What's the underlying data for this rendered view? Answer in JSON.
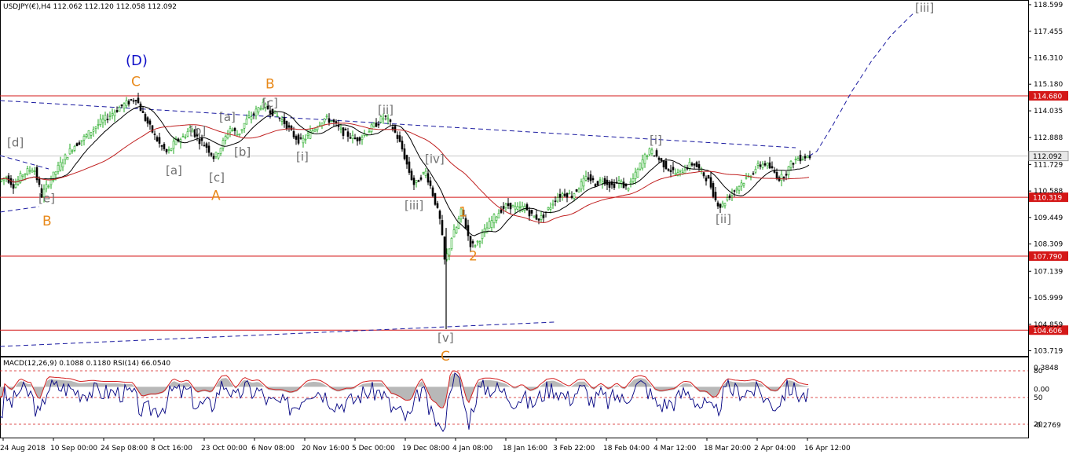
{
  "header": {
    "text": "USDJPY(€),H4  112.062 112.120 112.058 112.092"
  },
  "indicator_header": {
    "text": "MACD(12,26,9) 0.1088 0.1180  RSI(14) 66.0540"
  },
  "colors": {
    "level_line": "#d41818",
    "level_badge": "#d41818",
    "trend_dash": "#1a1aa0",
    "ma_fast": "#000000",
    "ma_slow": "#c02020",
    "candle_up": "#22aa22",
    "candle_down": "#000000",
    "current_price_badge": "#e8e8e8",
    "macd_hist": "#b8b8b8",
    "macd_signal": "#d42020",
    "rsi_line": "#000080"
  },
  "chart_data": {
    "type": "candlestick",
    "symbol": "USDJPY",
    "timeframe": "H4",
    "ylim": [
      103.5,
      118.8
    ],
    "y_ticks": [
      "118.599",
      "117.455",
      "116.310",
      "115.180",
      "114.035",
      "112.888",
      "111.729",
      "110.588",
      "109.449",
      "108.309",
      "107.139",
      "105.999",
      "104.859",
      "103.719"
    ],
    "x_ticks": [
      "24 Aug 2018",
      "10 Sep 00:00",
      "24 Sep 08:00",
      "8 Oct 16:00",
      "23 Oct 00:00",
      "6 Nov 08:00",
      "20 Nov 16:00",
      "5 Dec 00:00",
      "19 Dec 08:00",
      "4 Jan 08:00",
      "18 Jan 16:00",
      "3 Feb 22:00",
      "18 Feb 04:00",
      "4 Mar 12:00",
      "18 Mar 20:00",
      "2 Apr 04:00",
      "16 Apr 12:00"
    ],
    "levels": [
      "114.680",
      "110.319",
      "107.790",
      "104.606"
    ],
    "current_price": "112.092",
    "price_path": [
      [
        0,
        111.0
      ],
      [
        10,
        111.2
      ],
      [
        20,
        110.8
      ],
      [
        30,
        111.3
      ],
      [
        45,
        111.6
      ],
      [
        55,
        110.4
      ],
      [
        65,
        111.0
      ],
      [
        80,
        111.8
      ],
      [
        95,
        112.5
      ],
      [
        110,
        112.9
      ],
      [
        125,
        113.4
      ],
      [
        140,
        113.8
      ],
      [
        155,
        114.2
      ],
      [
        165,
        114.4
      ],
      [
        175,
        114.6
      ],
      [
        185,
        113.8
      ],
      [
        195,
        113.2
      ],
      [
        205,
        112.6
      ],
      [
        215,
        112.2
      ],
      [
        225,
        112.7
      ],
      [
        235,
        112.9
      ],
      [
        245,
        113.3
      ],
      [
        255,
        112.8
      ],
      [
        265,
        112.5
      ],
      [
        275,
        112.0
      ],
      [
        285,
        112.6
      ],
      [
        295,
        113.3
      ],
      [
        305,
        113.0
      ],
      [
        315,
        113.6
      ],
      [
        325,
        113.9
      ],
      [
        335,
        114.3
      ],
      [
        345,
        114.1
      ],
      [
        355,
        113.8
      ],
      [
        365,
        113.5
      ],
      [
        375,
        113.0
      ],
      [
        385,
        112.7
      ],
      [
        395,
        113.0
      ],
      [
        405,
        113.4
      ],
      [
        415,
        113.7
      ],
      [
        425,
        113.6
      ],
      [
        435,
        113.2
      ],
      [
        445,
        113.0
      ],
      [
        455,
        112.8
      ],
      [
        465,
        113.0
      ],
      [
        475,
        113.3
      ],
      [
        485,
        113.6
      ],
      [
        492,
        113.8
      ],
      [
        500,
        113.4
      ],
      [
        508,
        112.9
      ],
      [
        515,
        112.3
      ],
      [
        522,
        111.5
      ],
      [
        530,
        110.8
      ],
      [
        537,
        111.2
      ],
      [
        544,
        111.4
      ],
      [
        550,
        110.8
      ],
      [
        557,
        110.0
      ],
      [
        563,
        109.2
      ],
      [
        568,
        107.6
      ],
      [
        572,
        107.9
      ],
      [
        577,
        108.6
      ],
      [
        583,
        109.0
      ],
      [
        590,
        109.8
      ],
      [
        596,
        108.9
      ],
      [
        602,
        108.2
      ],
      [
        610,
        108.4
      ],
      [
        620,
        108.9
      ],
      [
        630,
        109.4
      ],
      [
        640,
        109.8
      ],
      [
        650,
        110.0
      ],
      [
        660,
        109.8
      ],
      [
        670,
        109.9
      ],
      [
        680,
        109.5
      ],
      [
        690,
        109.4
      ],
      [
        700,
        109.8
      ],
      [
        710,
        110.3
      ],
      [
        720,
        110.5
      ],
      [
        730,
        110.4
      ],
      [
        740,
        110.8
      ],
      [
        750,
        111.2
      ],
      [
        760,
        110.9
      ],
      [
        770,
        111.1
      ],
      [
        780,
        110.8
      ],
      [
        790,
        111.0
      ],
      [
        800,
        110.7
      ],
      [
        810,
        111.2
      ],
      [
        820,
        111.9
      ],
      [
        828,
        112.3
      ],
      [
        835,
        112.2
      ],
      [
        845,
        111.8
      ],
      [
        855,
        111.5
      ],
      [
        865,
        111.3
      ],
      [
        875,
        111.6
      ],
      [
        885,
        111.8
      ],
      [
        895,
        111.4
      ],
      [
        905,
        111.0
      ],
      [
        913,
        110.2
      ],
      [
        920,
        109.9
      ],
      [
        928,
        110.3
      ],
      [
        936,
        110.6
      ],
      [
        945,
        110.9
      ],
      [
        955,
        111.2
      ],
      [
        965,
        111.6
      ],
      [
        975,
        111.8
      ],
      [
        985,
        111.5
      ],
      [
        995,
        111.1
      ],
      [
        1003,
        111.4
      ],
      [
        1010,
        111.8
      ],
      [
        1018,
        112.0
      ],
      [
        1030,
        112.09
      ]
    ],
    "projection_path": [
      [
        1030,
        112.09
      ],
      [
        1040,
        112.3
      ],
      [
        1060,
        113.4
      ],
      [
        1085,
        114.9
      ],
      [
        1110,
        116.2
      ],
      [
        1135,
        117.3
      ],
      [
        1165,
        118.3
      ]
    ],
    "wave_labels": [
      {
        "text": "(D)",
        "style": "blue",
        "x": 160,
        "price": 116.0
      },
      {
        "text": "C",
        "style": "orange",
        "x": 167,
        "price": 115.1
      },
      {
        "text": "[d]",
        "style": "gray",
        "x": 9,
        "price": 112.5
      },
      {
        "text": "[e]",
        "style": "gray",
        "x": 49,
        "price": 110.1
      },
      {
        "text": "B",
        "style": "orange",
        "x": 54,
        "price": 109.1
      },
      {
        "text": "[b]",
        "style": "gray",
        "x": 241,
        "price": 113.0
      },
      {
        "text": "[a]",
        "style": "gray",
        "x": 211,
        "price": 111.3
      },
      {
        "text": "[a]",
        "style": "gray",
        "x": 279,
        "price": 113.6
      },
      {
        "text": "[b]",
        "style": "gray",
        "x": 298,
        "price": 112.1
      },
      {
        "text": "[c]",
        "style": "gray",
        "x": 266,
        "price": 111.0
      },
      {
        "text": "A",
        "style": "orange",
        "x": 269,
        "price": 110.2
      },
      {
        "text": "B",
        "style": "orange",
        "x": 338,
        "price": 115.0
      },
      {
        "text": "[c]",
        "style": "gray",
        "x": 334,
        "price": 114.2
      },
      {
        "text": "[i]",
        "style": "gray",
        "x": 377,
        "price": 111.9
      },
      {
        "text": "[ii]",
        "style": "gray",
        "x": 481,
        "price": 113.9
      },
      {
        "text": "[iv]",
        "style": "gray",
        "x": 541,
        "price": 111.8
      },
      {
        "text": "[iii]",
        "style": "gray",
        "x": 515,
        "price": 109.8
      },
      {
        "text": "1",
        "style": "orange",
        "x": 584,
        "price": 109.5
      },
      {
        "text": "2",
        "style": "orange",
        "x": 597,
        "price": 107.6
      },
      {
        "text": "[v]",
        "style": "gray",
        "x": 557,
        "price": 104.1
      },
      {
        "text": "C",
        "style": "orange",
        "x": 561,
        "price": 103.3
      },
      {
        "text": "[i]",
        "style": "gray",
        "x": 827,
        "price": 112.6
      },
      {
        "text": "[ii]",
        "style": "gray",
        "x": 911,
        "price": 109.2
      },
      {
        "text": "[iii]",
        "style": "gray",
        "x": 1165,
        "price": 118.3
      }
    ],
    "macd_ticks": [
      "0.3848",
      "0.00",
      "-0.2769"
    ],
    "rsi_ticks": [
      "80",
      "50",
      "20"
    ]
  }
}
